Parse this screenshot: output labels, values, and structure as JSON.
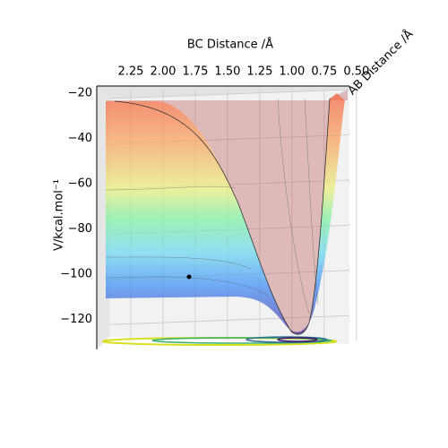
{
  "chart_data": {
    "type": "surface3d",
    "xlabel": "BC Distance /Å",
    "ylabel": "AB Distance /Å",
    "zlabel": "V/kcal.mol⁻¹",
    "xlim": [
      2.5,
      0.45
    ],
    "xticks": [
      2.25,
      {
        "value": 2.0,
        "label": "2.00"
      },
      1.75,
      {
        "value": 1.5,
        "label": "1.50"
      },
      1.25,
      {
        "value": 1.0,
        "label": "1.00"
      },
      0.75,
      {
        "value": 0.5,
        "label": "0.50"
      }
    ],
    "zlim": [
      -131,
      -17
    ],
    "zticks": [
      {
        "value": -20,
        "label": "−20"
      },
      {
        "value": -40,
        "label": "−40"
      },
      {
        "value": -60,
        "label": "−60"
      },
      {
        "value": -80,
        "label": "−80"
      },
      {
        "value": -100,
        "label": "−100"
      },
      {
        "value": -120,
        "label": "−120"
      }
    ],
    "grid": true
  }
}
